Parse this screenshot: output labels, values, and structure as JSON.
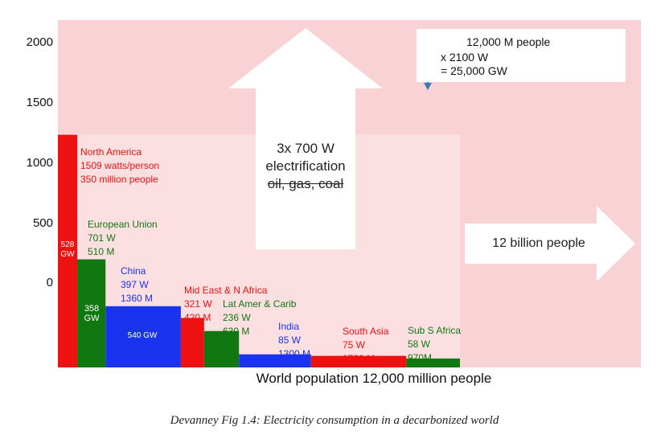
{
  "chart_data": {
    "type": "bar",
    "variant": "variable-width",
    "y_ticks": [
      "2000",
      "1500",
      "1000",
      "500",
      "0"
    ],
    "regions": [
      {
        "name": "North America",
        "watts": "1509 watts/person",
        "people": "350 million people",
        "gw": "528 GW",
        "watts_value": 1509,
        "population_m": 350,
        "color": "#ee1111",
        "label_color": "#ee1111"
      },
      {
        "name": "European Union",
        "watts": "701 W",
        "people": "510 M",
        "gw": "358 GW",
        "watts_value": 701,
        "population_m": 510,
        "color": "#117711",
        "label_color": "#117711"
      },
      {
        "name": "China",
        "watts": "397 W",
        "people": "1360 M",
        "gw": "540 GW",
        "watts_value": 397,
        "population_m": 1360,
        "color": "#1a33ee",
        "label_color": "#1a33ee"
      },
      {
        "name": "Mid East & N Africa",
        "watts": "321 W",
        "people": "420 M",
        "gw": "",
        "watts_value": 321,
        "population_m": 420,
        "color": "#ee1111",
        "label_color": "#ee1111"
      },
      {
        "name": "Lat Amer & Carib",
        "watts": "236 W",
        "people": "630 M",
        "gw": "",
        "watts_value": 236,
        "population_m": 630,
        "color": "#117711",
        "label_color": "#117711"
      },
      {
        "name": "India",
        "watts": "85 W",
        "people": "1300 M",
        "gw": "",
        "watts_value": 85,
        "population_m": 1300,
        "color": "#1a33ee",
        "label_color": "#1a33ee"
      },
      {
        "name": "South Asia",
        "watts": "75 W",
        "people": "1720 M",
        "gw": "",
        "watts_value": 75,
        "population_m": 1720,
        "color": "#ee1111",
        "label_color": "#ee1111"
      },
      {
        "name": "Sub S Africa",
        "watts": "58 W",
        "people": "970M",
        "gw": "",
        "watts_value": 58,
        "population_m": 970,
        "color": "#117711",
        "label_color": "#117711"
      }
    ],
    "xlabel": "World population 12,000 million people",
    "up_arrow_text": [
      "3x 700 W",
      "electrification",
      "oil, gas, coal"
    ],
    "right_arrow_text": "12 billion people",
    "legend": {
      "line1": "12,000 M people",
      "line2": "x  2100 W",
      "line3": "=  25,000 GW"
    },
    "colors": {
      "background_outer": "#f8d2d4",
      "background_inner": "#fbdfe1",
      "arrow": "#ffffff",
      "legend_arrow": "#3a78b6"
    }
  },
  "caption": "Devanney Fig 1.4: Electricity consumption in a decarbonized world"
}
